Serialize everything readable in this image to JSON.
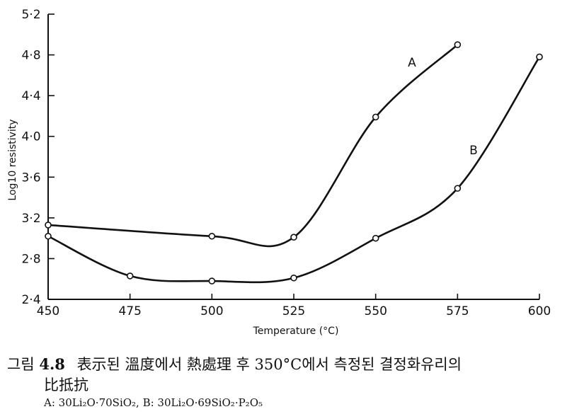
{
  "chart_data": {
    "type": "line",
    "xlabel": "Temperature (°C)",
    "ylabel": "Log10 resistivity",
    "xlim": [
      450,
      600
    ],
    "ylim": [
      2.4,
      5.2
    ],
    "x_ticks": [
      "450",
      "475",
      "500",
      "525",
      "550",
      "575",
      "600"
    ],
    "y_ticks": [
      "2·4",
      "2·8",
      "3·2",
      "3·6",
      "4·0",
      "4·4",
      "4·8",
      "5·2"
    ],
    "grid": false,
    "series": [
      {
        "name": "A",
        "points": [
          [
            450,
            3.13
          ],
          [
            500,
            3.02
          ],
          [
            525,
            3.01
          ],
          [
            550,
            4.19
          ],
          [
            575,
            4.9
          ]
        ]
      },
      {
        "name": "B",
        "points": [
          [
            450,
            3.02
          ],
          [
            475,
            2.63
          ],
          [
            500,
            2.58
          ],
          [
            525,
            2.61
          ],
          [
            550,
            3.0
          ],
          [
            575,
            3.49
          ],
          [
            600,
            4.78
          ]
        ]
      }
    ]
  },
  "caption": {
    "prefix": "그림",
    "figure_number": "4.8",
    "text": "表示된 溫度에서 熱處理 후 350°C에서 측정된 결정화유리의",
    "text_line2": "比抵抗",
    "legend_line": "A: 30Li₂O·70SiO₂, B: 30Li₂O·69SiO₂·P₂O₅"
  }
}
